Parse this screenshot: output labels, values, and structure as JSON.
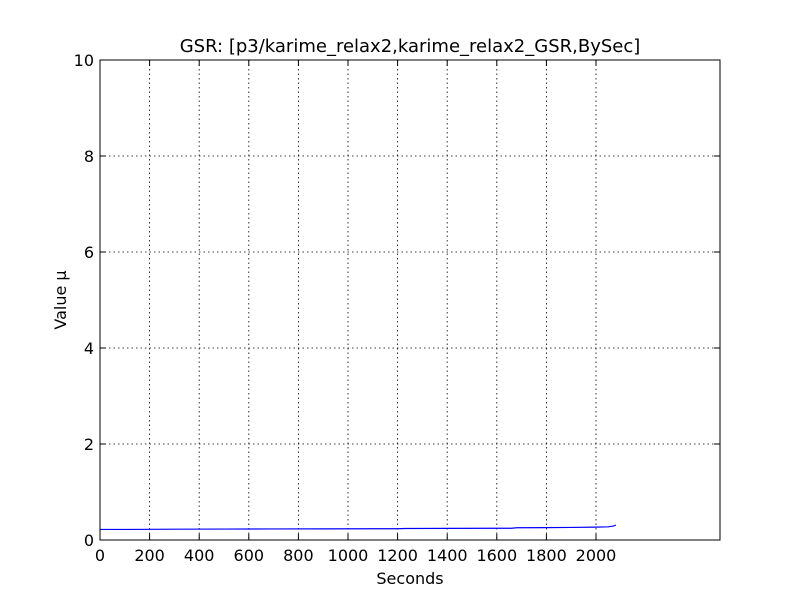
{
  "chart_data": {
    "type": "line",
    "title": "GSR: [p3/karime_relax2,karime_relax2_GSR,BySec]",
    "xlabel": "Seconds",
    "ylabel": "Value µ",
    "xlim": [
      0,
      2500
    ],
    "ylim": [
      0,
      10
    ],
    "xticks": [
      0,
      200,
      400,
      600,
      800,
      1000,
      1200,
      1400,
      1600,
      1800,
      2000
    ],
    "yticks": [
      0,
      2,
      4,
      6,
      8,
      10
    ],
    "grid": true,
    "series": [
      {
        "color": "#0000ff",
        "x": [
          0,
          100,
          300,
          500,
          700,
          900,
          1100,
          1200,
          1230,
          1400,
          1600,
          1660,
          1680,
          1800,
          1900,
          2000,
          2050,
          2070,
          2080
        ],
        "y": [
          0.22,
          0.22,
          0.225,
          0.228,
          0.23,
          0.232,
          0.234,
          0.235,
          0.24,
          0.242,
          0.245,
          0.245,
          0.255,
          0.258,
          0.262,
          0.268,
          0.275,
          0.29,
          0.31
        ]
      }
    ]
  }
}
